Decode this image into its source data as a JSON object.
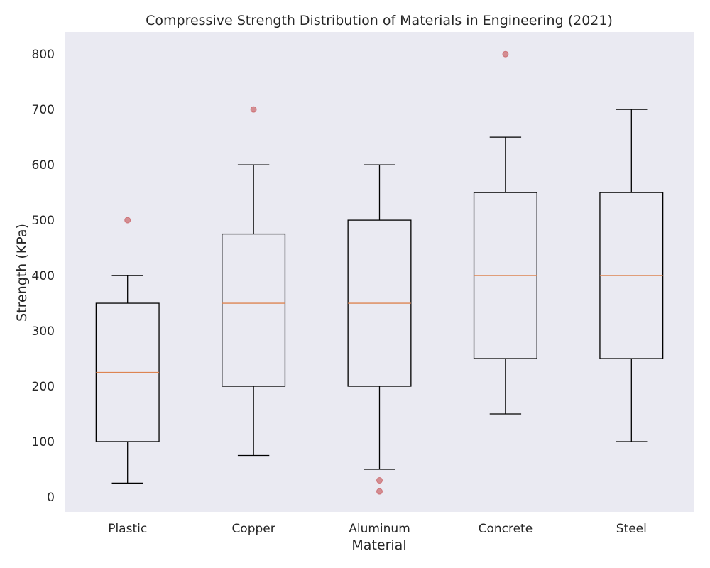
{
  "chart_data": {
    "type": "box",
    "title": "Compressive Strength Distribution of Materials in Engineering (2021)",
    "xlabel": "Material",
    "ylabel": "Strength (KPa)",
    "ylim": [
      -27,
      840
    ],
    "yticks": [
      0,
      100,
      200,
      300,
      400,
      500,
      600,
      700,
      800
    ],
    "grid": false,
    "categories": [
      "Plastic",
      "Copper",
      "Aluminum",
      "Concrete",
      "Steel"
    ],
    "boxes": [
      {
        "category": "Plastic",
        "whisker_low": 25,
        "q1": 100,
        "median": 225,
        "q3": 350,
        "whisker_high": 400,
        "outliers": [
          500
        ]
      },
      {
        "category": "Copper",
        "whisker_low": 75,
        "q1": 200,
        "median": 350,
        "q3": 475,
        "whisker_high": 600,
        "outliers": [
          700
        ]
      },
      {
        "category": "Aluminum",
        "whisker_low": 50,
        "q1": 200,
        "median": 350,
        "q3": 500,
        "whisker_high": 600,
        "outliers": [
          30,
          10
        ]
      },
      {
        "category": "Concrete",
        "whisker_low": 150,
        "q1": 250,
        "median": 400,
        "q3": 550,
        "whisker_high": 650,
        "outliers": [
          800
        ]
      },
      {
        "category": "Steel",
        "whisker_low": 100,
        "q1": 250,
        "median": 400,
        "q3": 550,
        "whisker_high": 700,
        "outliers": []
      }
    ],
    "colors": {
      "plot_background": "#eaeaf2",
      "box_edge": "#000000",
      "median_line": "#dd8452",
      "outlier": "#c44e52"
    }
  }
}
